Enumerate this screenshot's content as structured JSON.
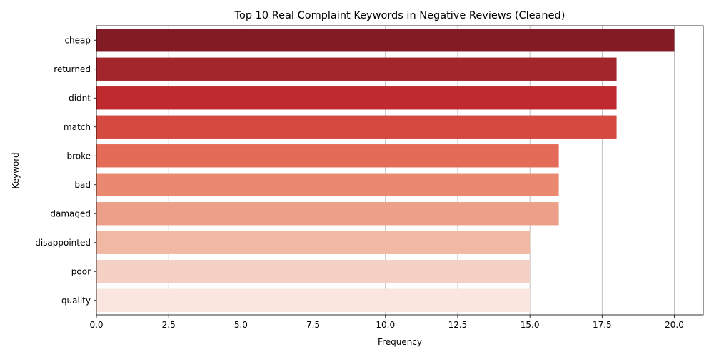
{
  "chart_data": {
    "type": "bar",
    "orientation": "horizontal",
    "title": "Top 10 Real Complaint Keywords in Negative Reviews (Cleaned)",
    "xlabel": "Frequency",
    "ylabel": "Keyword",
    "categories": [
      "cheap",
      "returned",
      "didnt",
      "match",
      "broke",
      "bad",
      "damaged",
      "disappointed",
      "poor",
      "quality"
    ],
    "values": [
      20,
      18,
      18,
      18,
      16,
      16,
      16,
      15,
      15,
      15
    ],
    "colors": [
      "#821b23",
      "#a4262d",
      "#bf2a2f",
      "#d44a40",
      "#e36b58",
      "#ea8870",
      "#eca089",
      "#f1b9a4",
      "#f4d1c4",
      "#fae6df"
    ],
    "xlim": [
      0,
      21
    ],
    "xticks": [
      "0.0",
      "2.5",
      "5.0",
      "7.5",
      "10.0",
      "12.5",
      "15.0",
      "17.5",
      "20.0"
    ],
    "grid": "vertical",
    "legend": "none"
  }
}
